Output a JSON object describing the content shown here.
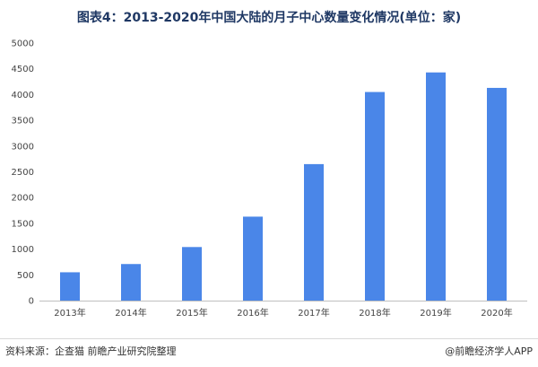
{
  "chart_data": {
    "type": "bar",
    "title": "图表4：2013-2020年中国大陆的月子中心数量变化情况(单位：家)",
    "categories": [
      "2013年",
      "2014年",
      "2015年",
      "2016年",
      "2017年",
      "2018年",
      "2019年",
      "2020年"
    ],
    "series": [
      {
        "values": [
          550,
          710,
          1040,
          1630,
          2650,
          4050,
          4430,
          4130
        ]
      }
    ],
    "ylim": [
      0,
      5000
    ],
    "yticks": [
      0,
      500,
      1000,
      1500,
      2000,
      2500,
      3000,
      3500,
      4000,
      4500,
      5000
    ],
    "grid": false,
    "bar_color": "#4a86e8",
    "axis_color": "#bfbfbf"
  },
  "footer": {
    "source": "资料来源：企查猫 前瞻产业研究院整理",
    "brand": "@前瞻经济学人APP"
  }
}
